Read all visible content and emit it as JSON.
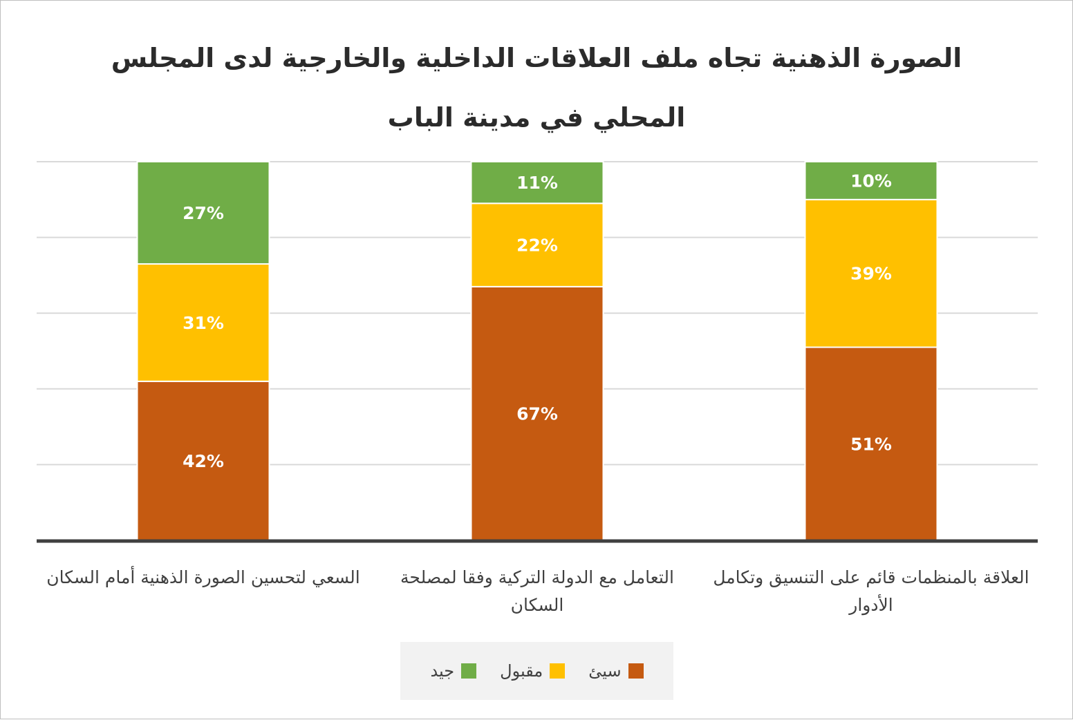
{
  "chart_data": {
    "type": "bar",
    "stacked": true,
    "percent_stacked": true,
    "title": "الصورة الذهنية تجاه ملف العلاقات الداخلية والخارجية لدى المجلس المحلي في مدينة الباب",
    "categories": [
      "السعي لتحسين الصورة الذهنية أمام السكان",
      "التعامل مع الدولة التركية وفقا لمصلحة السكان",
      "العلاقة بالمنظمات قائم على التنسيق وتكامل الأدوار"
    ],
    "series": [
      {
        "name": "سيئ",
        "color": "#c55a11",
        "values": [
          42,
          67,
          51
        ],
        "labels": [
          "42%",
          "67%",
          "51%"
        ]
      },
      {
        "name": "مقبول",
        "color": "#ffc000",
        "values": [
          31,
          22,
          39
        ],
        "labels": [
          "31%",
          "22%",
          "39%"
        ]
      },
      {
        "name": "جيد",
        "color": "#70ad47",
        "values": [
          27,
          11,
          10
        ],
        "labels": [
          "27%",
          "11%",
          "10%"
        ]
      }
    ],
    "legend_position": "bottom",
    "grid": true
  }
}
